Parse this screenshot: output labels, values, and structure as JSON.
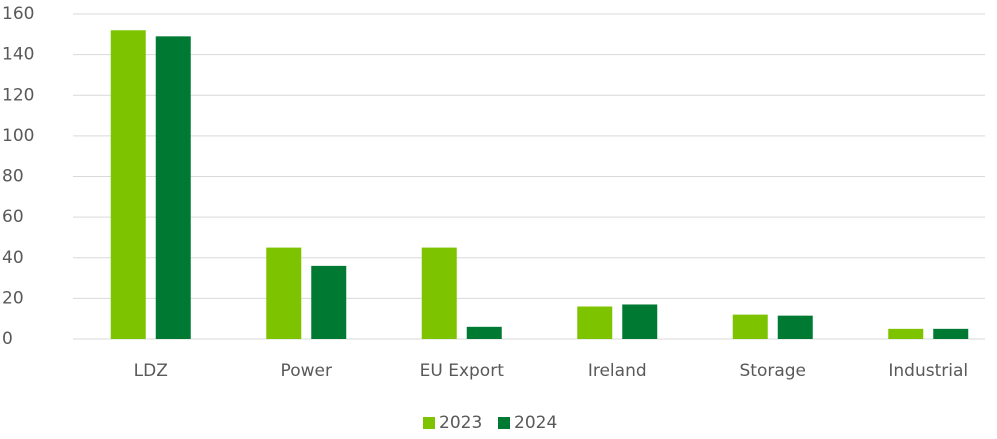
{
  "chart_data": {
    "type": "bar",
    "categories": [
      "LDZ",
      "Power",
      "EU Export",
      "Ireland",
      "Storage",
      "Industrial"
    ],
    "series": [
      {
        "name": "2023",
        "color": "#7dc300",
        "values": [
          152,
          45,
          45,
          16,
          12,
          5
        ]
      },
      {
        "name": "2024",
        "color": "#007a33",
        "values": [
          149,
          36,
          6,
          17,
          11.5,
          5
        ]
      }
    ],
    "ylim": [
      0,
      160
    ],
    "yticks": [
      0,
      20,
      40,
      60,
      80,
      100,
      120,
      140,
      160
    ],
    "grid": true,
    "legend": "bottom"
  }
}
